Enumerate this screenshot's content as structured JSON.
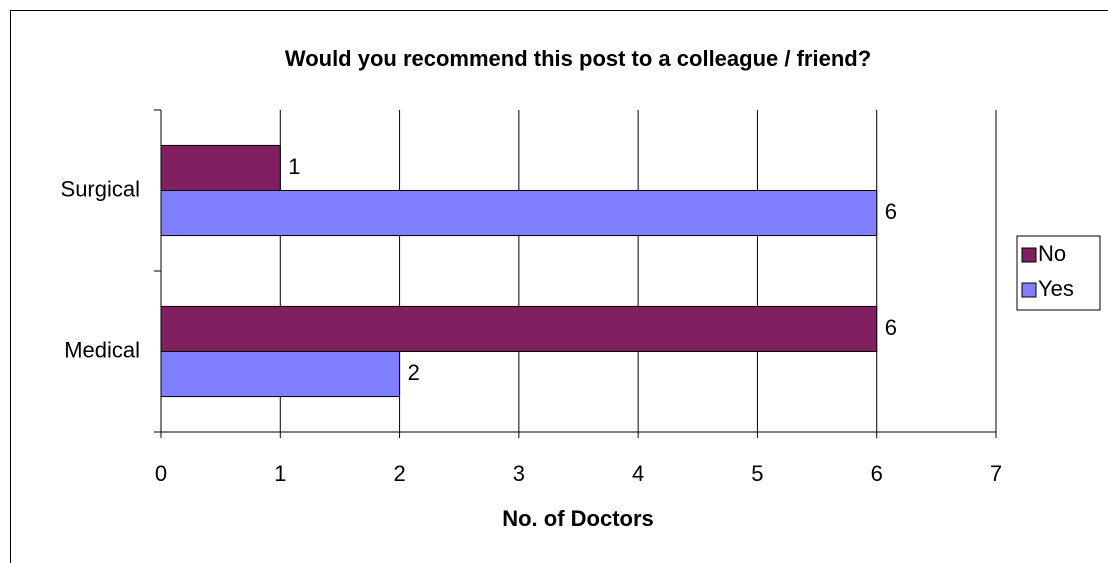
{
  "chart_data": {
    "type": "hbar",
    "title": "Would you recommend this post to a colleague / friend?",
    "categories": [
      "Surgical",
      "Medical"
    ],
    "series": [
      {
        "name": "No",
        "color": "#802060",
        "values": [
          1,
          6
        ]
      },
      {
        "name": "Yes",
        "color": "#8080ff",
        "values": [
          6,
          2
        ]
      }
    ],
    "xlabel": "No. of Doctors",
    "xlim": [
      0,
      7
    ],
    "xticks": [
      0,
      1,
      2,
      3,
      4,
      5,
      6,
      7
    ],
    "grid": true,
    "legend": "right"
  }
}
